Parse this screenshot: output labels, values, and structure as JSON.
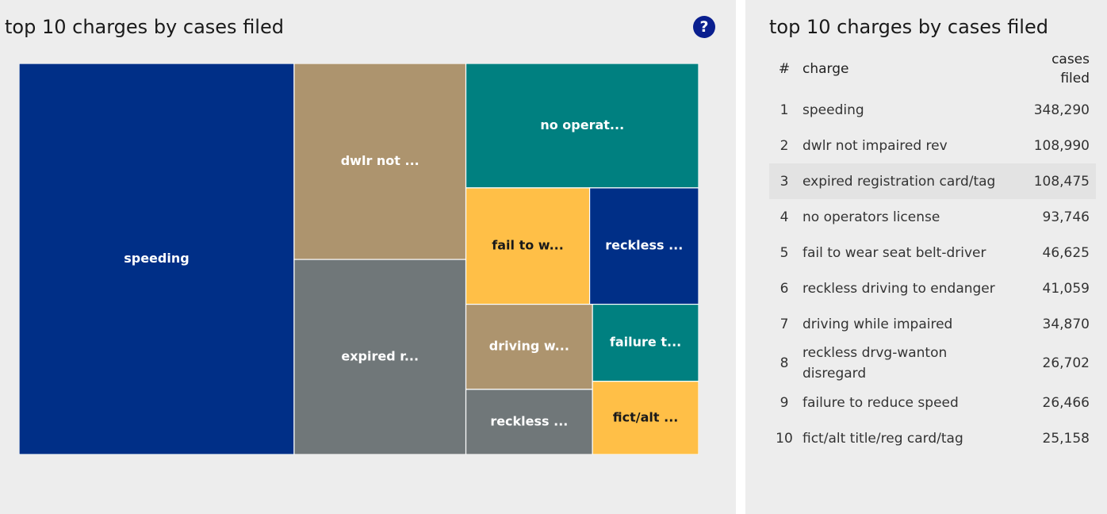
{
  "left_panel": {
    "title": "top 10 charges by cases filed",
    "help_label": "?"
  },
  "right_panel": {
    "title": "top 10 charges by cases filed",
    "table": {
      "headers": {
        "index": "#",
        "charge": "charge",
        "cases_line1": "cases",
        "cases_line2": "filed"
      },
      "rows": [
        {
          "index": "1",
          "charge": "speeding",
          "cases": "348,290"
        },
        {
          "index": "2",
          "charge": "dwlr not impaired rev",
          "cases": "108,990"
        },
        {
          "index": "3",
          "charge": "expired registration card/tag",
          "cases": "108,475"
        },
        {
          "index": "4",
          "charge": "no operators license",
          "cases": "93,746"
        },
        {
          "index": "5",
          "charge": "fail to wear seat belt-driver",
          "cases": "46,625"
        },
        {
          "index": "6",
          "charge": "reckless driving to endanger",
          "cases": "41,059"
        },
        {
          "index": "7",
          "charge": "driving while impaired",
          "cases": "34,870"
        },
        {
          "index": "8",
          "charge": "reckless drvg-wanton disregard",
          "cases": "26,702"
        },
        {
          "index": "9",
          "charge": "failure to reduce speed",
          "cases": "26,466"
        },
        {
          "index": "10",
          "charge": "fict/alt title/reg card/tag",
          "cases": "25,158"
        }
      ]
    }
  },
  "chart_data": {
    "type": "treemap",
    "title": "top 10 charges by cases filed",
    "items": [
      {
        "name": "speeding",
        "label": "speeding",
        "value": 348290,
        "color": "#002f87",
        "text_color": "#ffffff"
      },
      {
        "name": "dwlr not impaired rev",
        "label": "dwlr not ...",
        "value": 108990,
        "color": "#ad946e",
        "text_color": "#ffffff"
      },
      {
        "name": "expired registration card/tag",
        "label": "expired r...",
        "value": 108475,
        "color": "#707779",
        "text_color": "#ffffff"
      },
      {
        "name": "no operators license",
        "label": "no operat...",
        "value": 93746,
        "color": "#008080",
        "text_color": "#ffffff"
      },
      {
        "name": "fail to wear seat belt-driver",
        "label": "fail to w...",
        "value": 46625,
        "color": "#ffbf47",
        "text_color": "#1a1a1a"
      },
      {
        "name": "reckless driving to endanger",
        "label": "reckless ...",
        "value": 41059,
        "color": "#002f87",
        "text_color": "#ffffff"
      },
      {
        "name": "driving while impaired",
        "label": "driving w...",
        "value": 34870,
        "color": "#ad946e",
        "text_color": "#ffffff"
      },
      {
        "name": "reckless drvg-wanton disregard",
        "label": "reckless ...",
        "value": 26702,
        "color": "#707779",
        "text_color": "#ffffff"
      },
      {
        "name": "failure to reduce speed",
        "label": "failure t...",
        "value": 26466,
        "color": "#008080",
        "text_color": "#ffffff"
      },
      {
        "name": "fict/alt title/reg card/tag",
        "label": "fict/alt ...",
        "value": 25158,
        "color": "#ffbf47",
        "text_color": "#1a1a1a"
      }
    ]
  }
}
